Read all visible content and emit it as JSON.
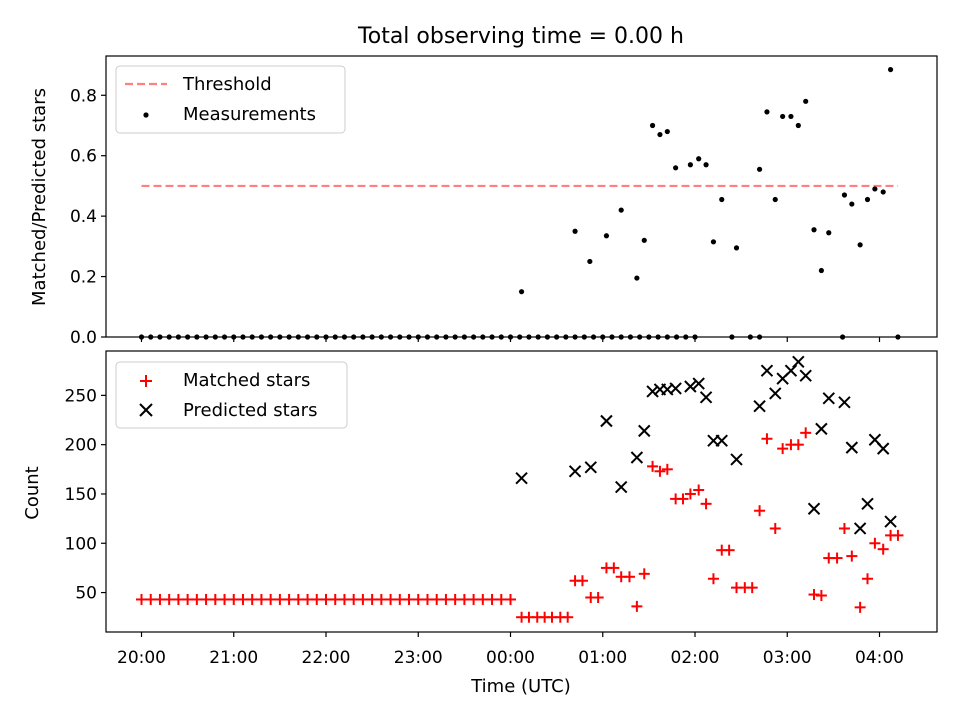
{
  "chart_data": [
    {
      "type": "scatter",
      "title": "Total observing time = 0.00 h",
      "xlabel": "",
      "ylabel": "Matched/Predicted stars",
      "ylim": [
        0.0,
        0.93
      ],
      "yticks": [
        0.0,
        0.2,
        0.4,
        0.6,
        0.8
      ],
      "ytick_labels": [
        "0.0",
        "0.2",
        "0.4",
        "0.6",
        "0.8"
      ],
      "legend_position": "top-left",
      "threshold": {
        "name": "Threshold",
        "value": 0.5,
        "x_start": 0.0,
        "x_end": 8.2,
        "color": "#ff8080"
      },
      "series": [
        {
          "name": "Measurements",
          "color": "#000000",
          "marker": "dot",
          "points": [
            [
              0.0,
              0
            ],
            [
              0.1,
              0
            ],
            [
              0.2,
              0
            ],
            [
              0.3,
              0
            ],
            [
              0.4,
              0
            ],
            [
              0.5,
              0
            ],
            [
              0.6,
              0
            ],
            [
              0.7,
              0
            ],
            [
              0.8,
              0
            ],
            [
              0.9,
              0
            ],
            [
              1.0,
              0
            ],
            [
              1.1,
              0
            ],
            [
              1.2,
              0
            ],
            [
              1.3,
              0
            ],
            [
              1.4,
              0
            ],
            [
              1.5,
              0
            ],
            [
              1.6,
              0
            ],
            [
              1.7,
              0
            ],
            [
              1.8,
              0
            ],
            [
              1.9,
              0
            ],
            [
              2.0,
              0
            ],
            [
              2.1,
              0
            ],
            [
              2.2,
              0
            ],
            [
              2.3,
              0
            ],
            [
              2.4,
              0
            ],
            [
              2.5,
              0
            ],
            [
              2.6,
              0
            ],
            [
              2.7,
              0
            ],
            [
              2.8,
              0
            ],
            [
              2.9,
              0
            ],
            [
              3.0,
              0
            ],
            [
              3.1,
              0
            ],
            [
              3.2,
              0
            ],
            [
              3.3,
              0
            ],
            [
              3.4,
              0
            ],
            [
              3.5,
              0
            ],
            [
              3.6,
              0
            ],
            [
              3.7,
              0
            ],
            [
              3.8,
              0
            ],
            [
              3.9,
              0
            ],
            [
              4.0,
              0
            ],
            [
              4.1,
              0
            ],
            [
              4.2,
              0
            ],
            [
              4.3,
              0
            ],
            [
              4.4,
              0
            ],
            [
              4.5,
              0
            ],
            [
              4.6,
              0
            ],
            [
              4.7,
              0
            ],
            [
              4.8,
              0
            ],
            [
              4.9,
              0
            ],
            [
              5.0,
              0
            ],
            [
              5.1,
              0
            ],
            [
              5.2,
              0
            ],
            [
              5.3,
              0
            ],
            [
              5.4,
              0
            ],
            [
              5.5,
              0
            ],
            [
              5.6,
              0
            ],
            [
              5.7,
              0
            ],
            [
              5.8,
              0
            ],
            [
              5.9,
              0
            ],
            [
              6.0,
              0
            ],
            [
              4.12,
              0.15
            ],
            [
              4.7,
              0.35
            ],
            [
              4.86,
              0.25
            ],
            [
              5.04,
              0.335
            ],
            [
              5.2,
              0.42
            ],
            [
              5.37,
              0.195
            ],
            [
              5.45,
              0.32
            ],
            [
              5.54,
              0.7
            ],
            [
              5.62,
              0.67
            ],
            [
              5.7,
              0.68
            ],
            [
              5.79,
              0.56
            ],
            [
              5.95,
              0.57
            ],
            [
              6.04,
              0.59
            ],
            [
              6.12,
              0.57
            ],
            [
              6.2,
              0.315
            ],
            [
              6.29,
              0.455
            ],
            [
              6.45,
              0.295
            ],
            [
              6.7,
              0.555
            ],
            [
              6.78,
              0.745
            ],
            [
              6.87,
              0.455
            ],
            [
              6.95,
              0.73
            ],
            [
              7.04,
              0.73
            ],
            [
              7.12,
              0.7
            ],
            [
              7.2,
              0.78
            ],
            [
              7.29,
              0.355
            ],
            [
              7.37,
              0.22
            ],
            [
              7.45,
              0.345
            ],
            [
              7.62,
              0.47
            ],
            [
              7.7,
              0.44
            ],
            [
              7.79,
              0.305
            ],
            [
              7.87,
              0.455
            ],
            [
              7.95,
              0.49
            ],
            [
              8.04,
              0.48
            ],
            [
              8.12,
              0.885
            ],
            [
              6.4,
              0
            ],
            [
              6.6,
              0
            ],
            [
              6.7,
              0
            ],
            [
              7.6,
              0
            ],
            [
              8.2,
              0
            ]
          ]
        }
      ]
    },
    {
      "type": "scatter",
      "title": "",
      "xlabel": "Time (UTC)",
      "ylabel": "Count",
      "ylim": [
        10,
        295
      ],
      "yticks": [
        50,
        100,
        150,
        200,
        250
      ],
      "ytick_labels": [
        "50",
        "100",
        "150",
        "200",
        "250"
      ],
      "xticks": [
        0,
        1,
        2,
        3,
        4,
        5,
        6,
        7,
        8
      ],
      "xtick_labels": [
        "20:00",
        "21:00",
        "22:00",
        "23:00",
        "00:00",
        "01:00",
        "02:00",
        "03:00",
        "04:00"
      ],
      "legend_position": "top-left",
      "series": [
        {
          "name": "Matched stars",
          "color": "#ff0000",
          "marker": "plus",
          "points": [
            [
              0.0,
              43
            ],
            [
              0.1,
              43
            ],
            [
              0.2,
              43
            ],
            [
              0.3,
              43
            ],
            [
              0.4,
              43
            ],
            [
              0.5,
              43
            ],
            [
              0.6,
              43
            ],
            [
              0.7,
              43
            ],
            [
              0.8,
              43
            ],
            [
              0.9,
              43
            ],
            [
              1.0,
              43
            ],
            [
              1.1,
              43
            ],
            [
              1.2,
              43
            ],
            [
              1.3,
              43
            ],
            [
              1.4,
              43
            ],
            [
              1.5,
              43
            ],
            [
              1.6,
              43
            ],
            [
              1.7,
              43
            ],
            [
              1.8,
              43
            ],
            [
              1.9,
              43
            ],
            [
              2.0,
              43
            ],
            [
              2.1,
              43
            ],
            [
              2.2,
              43
            ],
            [
              2.3,
              43
            ],
            [
              2.4,
              43
            ],
            [
              2.5,
              43
            ],
            [
              2.6,
              43
            ],
            [
              2.7,
              43
            ],
            [
              2.8,
              43
            ],
            [
              2.9,
              43
            ],
            [
              3.0,
              43
            ],
            [
              3.1,
              43
            ],
            [
              3.2,
              43
            ],
            [
              3.3,
              43
            ],
            [
              3.4,
              43
            ],
            [
              3.5,
              43
            ],
            [
              3.6,
              43
            ],
            [
              3.7,
              43
            ],
            [
              3.8,
              43
            ],
            [
              3.9,
              43
            ],
            [
              4.0,
              43
            ],
            [
              4.12,
              25
            ],
            [
              4.2,
              25
            ],
            [
              4.29,
              25
            ],
            [
              4.37,
              25
            ],
            [
              4.45,
              25
            ],
            [
              4.54,
              25
            ],
            [
              4.62,
              25
            ],
            [
              4.7,
              62
            ],
            [
              4.78,
              62
            ],
            [
              4.87,
              45
            ],
            [
              4.95,
              45
            ],
            [
              5.04,
              75
            ],
            [
              5.12,
              75
            ],
            [
              5.2,
              66
            ],
            [
              5.29,
              66
            ],
            [
              5.37,
              36
            ],
            [
              5.45,
              69
            ],
            [
              5.54,
              178
            ],
            [
              5.62,
              173
            ],
            [
              5.7,
              175
            ],
            [
              5.79,
              145
            ],
            [
              5.87,
              145
            ],
            [
              5.95,
              150
            ],
            [
              6.04,
              154
            ],
            [
              6.12,
              140
            ],
            [
              6.2,
              64
            ],
            [
              6.29,
              93
            ],
            [
              6.37,
              93
            ],
            [
              6.45,
              55
            ],
            [
              6.54,
              55
            ],
            [
              6.62,
              55
            ],
            [
              6.7,
              133
            ],
            [
              6.78,
              206
            ],
            [
              6.87,
              115
            ],
            [
              6.95,
              196
            ],
            [
              7.04,
              200
            ],
            [
              7.12,
              200
            ],
            [
              7.2,
              212
            ],
            [
              7.29,
              48
            ],
            [
              7.37,
              47
            ],
            [
              7.45,
              85
            ],
            [
              7.54,
              85
            ],
            [
              7.62,
              115
            ],
            [
              7.7,
              87
            ],
            [
              7.79,
              35
            ],
            [
              7.87,
              64
            ],
            [
              7.95,
              100
            ],
            [
              8.04,
              94
            ],
            [
              8.12,
              108
            ],
            [
              8.2,
              108
            ]
          ]
        },
        {
          "name": "Predicted stars",
          "color": "#000000",
          "marker": "x",
          "points": [
            [
              4.12,
              166
            ],
            [
              4.7,
              173
            ],
            [
              4.87,
              177
            ],
            [
              5.04,
              224
            ],
            [
              5.2,
              157
            ],
            [
              5.37,
              187
            ],
            [
              5.45,
              214
            ],
            [
              5.54,
              254
            ],
            [
              5.62,
              256
            ],
            [
              5.7,
              256
            ],
            [
              5.79,
              257
            ],
            [
              5.95,
              259
            ],
            [
              6.04,
              262
            ],
            [
              6.12,
              248
            ],
            [
              6.2,
              204
            ],
            [
              6.29,
              204
            ],
            [
              6.45,
              185
            ],
            [
              6.7,
              239
            ],
            [
              6.78,
              275
            ],
            [
              6.87,
              252
            ],
            [
              6.95,
              267
            ],
            [
              7.04,
              275
            ],
            [
              7.12,
              284
            ],
            [
              7.2,
              270
            ],
            [
              7.29,
              135
            ],
            [
              7.37,
              216
            ],
            [
              7.45,
              247
            ],
            [
              7.62,
              243
            ],
            [
              7.7,
              197
            ],
            [
              7.79,
              115
            ],
            [
              7.87,
              140
            ],
            [
              7.95,
              205
            ],
            [
              8.04,
              196
            ],
            [
              8.12,
              122
            ]
          ]
        }
      ]
    }
  ]
}
